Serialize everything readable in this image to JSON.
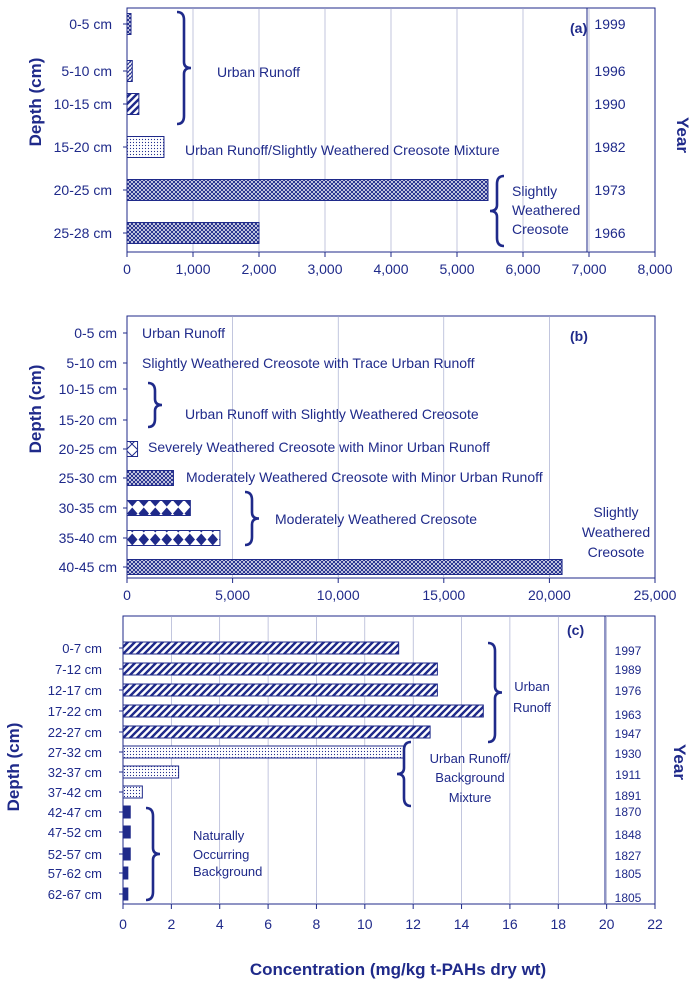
{
  "colors": {
    "ink": "#1f2a8a",
    "bg": "#ffffff",
    "grid": "#9aa0c8"
  },
  "common": {
    "ylabel": "Depth (cm)",
    "year_label": "Year",
    "xlabel": "Concentration (mg/kg t-PAHs dry wt)"
  },
  "chart_data": [
    {
      "type": "bar",
      "panel": "(a)",
      "orientation": "horizontal",
      "categories": [
        "0-5 cm",
        "5-10 cm",
        "10-15 cm",
        "15-20 cm",
        "20-25 cm",
        "25-28 cm"
      ],
      "values": [
        60,
        80,
        180,
        560,
        5470,
        2000
      ],
      "patterns": [
        "crosshatch",
        "hatch",
        "diag",
        "dots",
        "crosshatch",
        "crosshatch"
      ],
      "years": [
        "1999",
        "1996",
        "1990",
        "1982",
        "1973",
        "1966"
      ],
      "xlim": [
        0,
        8000
      ],
      "xticks": [
        "0",
        "1,000",
        "2,000",
        "3,000",
        "4,000",
        "5,000",
        "6,000",
        "7,000",
        "8,000"
      ],
      "grid": true,
      "annotations": [
        {
          "text": [
            "Urban Runoff"
          ]
        },
        {
          "text": [
            "Urban Runoff/Slightly Weathered Creosote Mixture"
          ]
        },
        {
          "text": [
            "Slightly",
            "Weathered",
            "Creosote"
          ]
        }
      ]
    },
    {
      "type": "bar",
      "panel": "(b)",
      "orientation": "horizontal",
      "categories": [
        "0-5 cm",
        "5-10 cm",
        "10-15 cm",
        "15-20 cm",
        "20-25 cm",
        "25-30 cm",
        "30-35 cm",
        "35-40 cm",
        "40-45 cm"
      ],
      "values": [
        0,
        0,
        0,
        0,
        500,
        2200,
        3000,
        4400,
        20600
      ],
      "patterns": [
        "none",
        "none",
        "none",
        "none",
        "xbox",
        "crosshatch",
        "diamond",
        "diamond",
        "crosshatch"
      ],
      "xlim": [
        0,
        25000
      ],
      "xticks": [
        "0",
        "5,000",
        "10,000",
        "15,000",
        "20,000",
        "25,000"
      ],
      "grid": true,
      "annotations": [
        {
          "text": [
            "Urban Runoff"
          ]
        },
        {
          "text": [
            "Slightly Weathered Creosote with Trace Urban Runoff"
          ]
        },
        {
          "text": [
            "Urban Runoff with Slightly Weathered Creosote"
          ]
        },
        {
          "text": [
            "Severely Weathered Creosote with Minor Urban Runoff"
          ]
        },
        {
          "text": [
            "Moderately Weathered Creosote with Minor Urban Runoff"
          ]
        },
        {
          "text": [
            "Moderately Weathered Creosote"
          ]
        },
        {
          "text": [
            "Slightly",
            "Weathered",
            "Creosote"
          ]
        }
      ]
    },
    {
      "type": "bar",
      "panel": "(c)",
      "orientation": "horizontal",
      "categories": [
        "0-7 cm",
        "7-12 cm",
        "12-17 cm",
        "17-22 cm",
        "22-27 cm",
        "27-32 cm",
        "32-37 cm",
        "37-42 cm",
        "42-47 cm",
        "47-52 cm",
        "52-57 cm",
        "57-62 cm",
        "62-67 cm"
      ],
      "values": [
        11.4,
        13.0,
        13.0,
        14.9,
        12.7,
        11.6,
        2.3,
        0.8,
        0.3,
        0.3,
        0.3,
        0.2,
        0.2
      ],
      "patterns": [
        "diag",
        "diag",
        "diag",
        "diag",
        "diag",
        "dots",
        "dots",
        "dots",
        "solid",
        "solid",
        "solid",
        "solid",
        "solid"
      ],
      "years": [
        "1997",
        "1989",
        "1976",
        "1963",
        "1947",
        "1930",
        "1911",
        "1891",
        "1870",
        "1848",
        "1827",
        "1805",
        "1805"
      ],
      "xlim": [
        0,
        22
      ],
      "xticks": [
        "0",
        "2",
        "4",
        "6",
        "8",
        "10",
        "12",
        "14",
        "16",
        "18",
        "20",
        "22"
      ],
      "grid": true,
      "annotations": [
        {
          "text": [
            "Urban",
            "Runoff"
          ]
        },
        {
          "text": [
            "Urban Runoff/",
            "Background",
            "Mixture"
          ]
        },
        {
          "text": [
            "Naturally",
            "Occurring",
            "Background"
          ]
        }
      ]
    }
  ]
}
